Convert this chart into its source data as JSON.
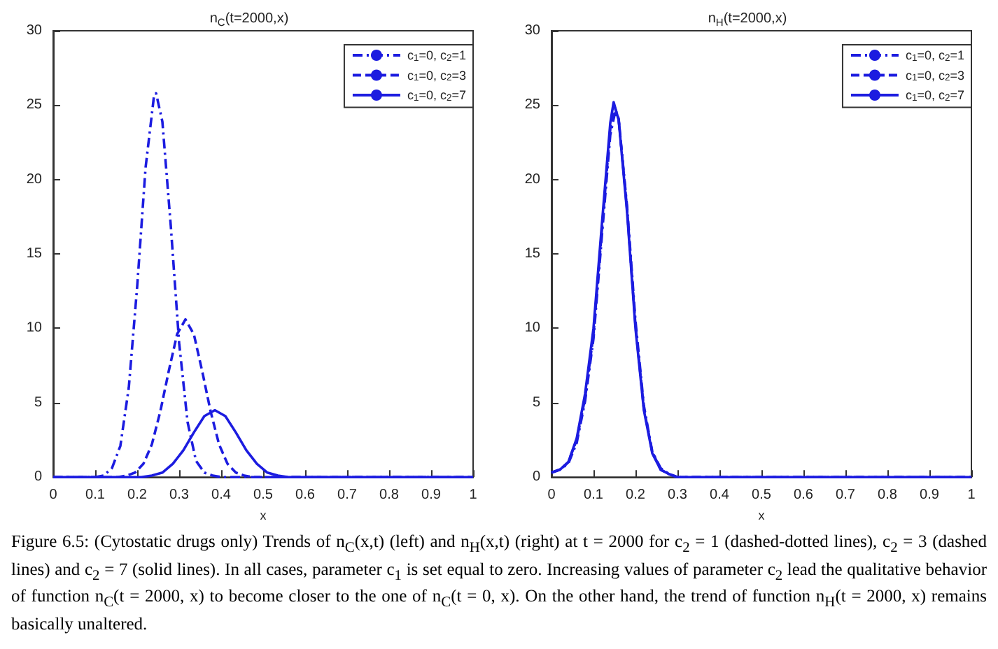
{
  "chart_data": [
    {
      "type": "line",
      "title": "n$_{C}$(t=2000,x)",
      "xlabel": "x",
      "xlim": [
        0,
        1
      ],
      "xticks": [
        0,
        0.1,
        0.2,
        0.3,
        0.4,
        0.5,
        0.6,
        0.7,
        0.8,
        0.9,
        1
      ],
      "ylim": [
        0,
        30
      ],
      "yticks": [
        0,
        5,
        10,
        15,
        20,
        25,
        30
      ],
      "grid": false,
      "legend": "top right",
      "marker": "none",
      "annotations": [
        "Figure 6.5: (Cytostatic drugs only) Trends of n$_{C}$(x,t) (left) and n$_{H}$(x,t) (right) at t = 2000 for c$_{2}$ = 1 (dashed-dotted lines), c$_{2}$ = 3 (dashed lines) and c$_{2}$ = 7 (solid lines). In all cases, parameter c$_{1}$ is set equal to zero. Increasing values of parameter c$_{2}$ lead the qualitative behavior of function n$_{C}$(t = 2000, x) to become closer to the one of n$_{C}$(t = 0, x). On the other hand, the trend of function n$_{H}$(t = 2000, x) remains basically unaltered."
      ],
      "series": [
        {
          "name": "c$_{1}$=0, c$_{2}$=1",
          "color": "#1c1ce0",
          "line_style": "dashdot",
          "x": [
            0,
            0.08,
            0.1,
            0.12,
            0.14,
            0.16,
            0.18,
            0.2,
            0.22,
            0.24,
            0.245,
            0.26,
            0.28,
            0.3,
            0.32,
            0.34,
            0.36,
            0.38,
            0.4,
            1
          ],
          "values": [
            0,
            0,
            0,
            0.1,
            0.6,
            2.1,
            6.0,
            12.8,
            20.8,
            25.6,
            25.8,
            23.9,
            16.9,
            9.0,
            3.7,
            1.1,
            0.3,
            0.1,
            0,
            0
          ]
        },
        {
          "name": "c$_{1}$=0, c$_{2}$=3",
          "color": "#1c1ce0",
          "line_style": "dashed",
          "x": [
            0,
            0.135,
            0.155,
            0.175,
            0.195,
            0.215,
            0.235,
            0.255,
            0.275,
            0.295,
            0.315,
            0.335,
            0.355,
            0.375,
            0.395,
            0.415,
            0.435,
            0.455,
            0.475,
            0.495,
            1
          ],
          "values": [
            0,
            0,
            0,
            0.1,
            0.3,
            0.9,
            2.2,
            4.4,
            7.1,
            9.6,
            10.6,
            9.6,
            7.1,
            4.4,
            2.2,
            0.9,
            0.3,
            0.1,
            0,
            0,
            0
          ]
        },
        {
          "name": "c$_{1}$=0, c$_{2}$=7",
          "color": "#1c1ce0",
          "line_style": "solid",
          "x": [
            0,
            0.185,
            0.21,
            0.235,
            0.26,
            0.285,
            0.31,
            0.335,
            0.36,
            0.385,
            0.41,
            0.435,
            0.46,
            0.485,
            0.51,
            0.535,
            0.56,
            0.585,
            1
          ],
          "values": [
            0,
            0,
            0,
            0.1,
            0.3,
            0.9,
            1.8,
            3.0,
            4.1,
            4.5,
            4.1,
            3.0,
            1.8,
            0.9,
            0.3,
            0.1,
            0,
            0,
            0
          ]
        }
      ]
    },
    {
      "type": "line",
      "title": "n$_{H}$(t=2000,x)",
      "xlabel": "x",
      "xlim": [
        0,
        1
      ],
      "xticks": [
        0,
        0.1,
        0.2,
        0.3,
        0.4,
        0.5,
        0.6,
        0.7,
        0.8,
        0.9,
        1
      ],
      "ylim": [
        0,
        30
      ],
      "yticks": [
        0,
        5,
        10,
        15,
        20,
        25,
        30
      ],
      "grid": false,
      "legend": "top right",
      "marker": "none",
      "series": [
        {
          "name": "c$_{1}$=0, c$_{2}$=1",
          "color": "#1c1ce0",
          "line_style": "dashdot",
          "x": [
            0,
            0.02,
            0.04,
            0.06,
            0.08,
            0.1,
            0.12,
            0.14,
            0.152,
            0.16,
            0.18,
            0.2,
            0.22,
            0.24,
            0.26,
            0.28,
            0.3,
            0.35,
            1
          ],
          "values": [
            0.3,
            0.5,
            0.9,
            2.3,
            5.1,
            9.3,
            16.2,
            23.0,
            24.6,
            24.0,
            18.2,
            10.5,
            4.8,
            1.7,
            0.6,
            0.2,
            0,
            0,
            0
          ]
        },
        {
          "name": "c$_{1}$=0, c$_{2}$=3",
          "color": "#1c1ce0",
          "line_style": "dashed",
          "x": [
            0,
            0.02,
            0.04,
            0.06,
            0.08,
            0.1,
            0.12,
            0.14,
            0.15,
            0.16,
            0.18,
            0.2,
            0.22,
            0.24,
            0.26,
            0.28,
            0.3,
            0.35,
            1
          ],
          "values": [
            0.3,
            0.5,
            1.0,
            2.5,
            5.3,
            9.6,
            16.6,
            23.4,
            24.9,
            24.1,
            18.0,
            10.2,
            4.6,
            1.7,
            0.5,
            0.2,
            0,
            0,
            0
          ]
        },
        {
          "name": "c$_{1}$=0, c$_{2}$=7",
          "color": "#1c1ce0",
          "line_style": "solid",
          "x": [
            0,
            0.02,
            0.04,
            0.06,
            0.08,
            0.1,
            0.12,
            0.14,
            0.148,
            0.16,
            0.18,
            0.2,
            0.22,
            0.24,
            0.26,
            0.28,
            0.3,
            0.35,
            1
          ],
          "values": [
            0.3,
            0.5,
            1.0,
            2.6,
            5.6,
            10.0,
            17.0,
            23.8,
            25.2,
            24.0,
            17.8,
            10.0,
            4.5,
            1.6,
            0.5,
            0.2,
            0,
            0,
            0
          ]
        }
      ]
    }
  ]
}
